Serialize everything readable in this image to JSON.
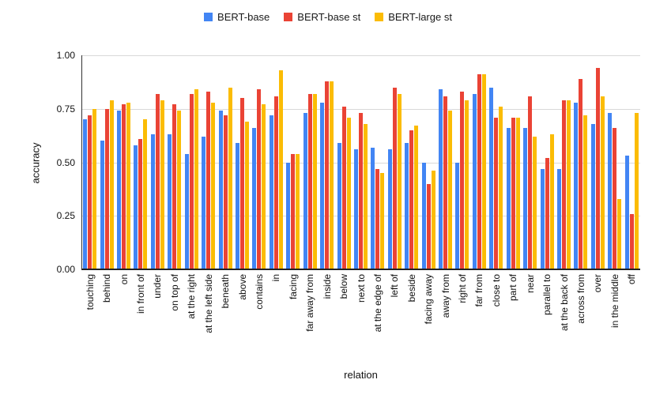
{
  "chart_data": {
    "type": "bar",
    "title": "",
    "xlabel": "relation",
    "ylabel": "accuracy",
    "ylim": [
      0,
      1
    ],
    "ytick_labels": [
      "1.00",
      "0.75",
      "0.50",
      "0.25",
      "0.00"
    ],
    "grid": true,
    "legend_position": "top",
    "categories": [
      "touching",
      "behind",
      "on",
      "in front of",
      "under",
      "on top of",
      "at the right",
      "at the left side",
      "beneath",
      "above",
      "contains",
      "in",
      "facing",
      "far away from",
      "inside",
      "below",
      "next to",
      "at the edge of",
      "left of",
      "beside",
      "facing away",
      "away from",
      "right of",
      "far from",
      "close to",
      "part of",
      "near",
      "parallel to",
      "at the back of",
      "across from",
      "over",
      "in the middle",
      "off"
    ],
    "series": [
      {
        "name": "BERT-base",
        "color": "#4285F4",
        "values": [
          0.7,
          0.6,
          0.74,
          0.58,
          0.63,
          0.63,
          0.54,
          0.62,
          0.74,
          0.59,
          0.66,
          0.72,
          0.5,
          0.73,
          0.78,
          0.59,
          0.56,
          0.57,
          0.56,
          0.59,
          0.5,
          0.84,
          0.5,
          0.82,
          0.85,
          0.66,
          0.66,
          0.47,
          0.47,
          0.78,
          0.68,
          0.73,
          0.53
        ]
      },
      {
        "name": "BERT-base st",
        "color": "#EA4335",
        "values": [
          0.72,
          0.75,
          0.77,
          0.61,
          0.82,
          0.77,
          0.82,
          0.83,
          0.72,
          0.8,
          0.84,
          0.81,
          0.54,
          0.82,
          0.88,
          0.76,
          0.73,
          0.47,
          0.85,
          0.65,
          0.4,
          0.81,
          0.83,
          0.91,
          0.71,
          0.71,
          0.81,
          0.52,
          0.79,
          0.89,
          0.94,
          0.66,
          0.26
        ]
      },
      {
        "name": "BERT-large st",
        "color": "#FBBC04",
        "values": [
          0.75,
          0.79,
          0.78,
          0.7,
          0.79,
          0.74,
          0.84,
          0.78,
          0.85,
          0.69,
          0.77,
          0.93,
          0.54,
          0.82,
          0.88,
          0.71,
          0.68,
          0.45,
          0.82,
          0.67,
          0.46,
          0.74,
          0.79,
          0.91,
          0.76,
          0.71,
          0.62,
          0.63,
          0.79,
          0.72,
          0.81,
          0.33,
          0.73
        ]
      }
    ],
    "colors": {
      "gridline": "#d9d9d9",
      "axis_line": "#222222",
      "text": "#111111"
    }
  }
}
